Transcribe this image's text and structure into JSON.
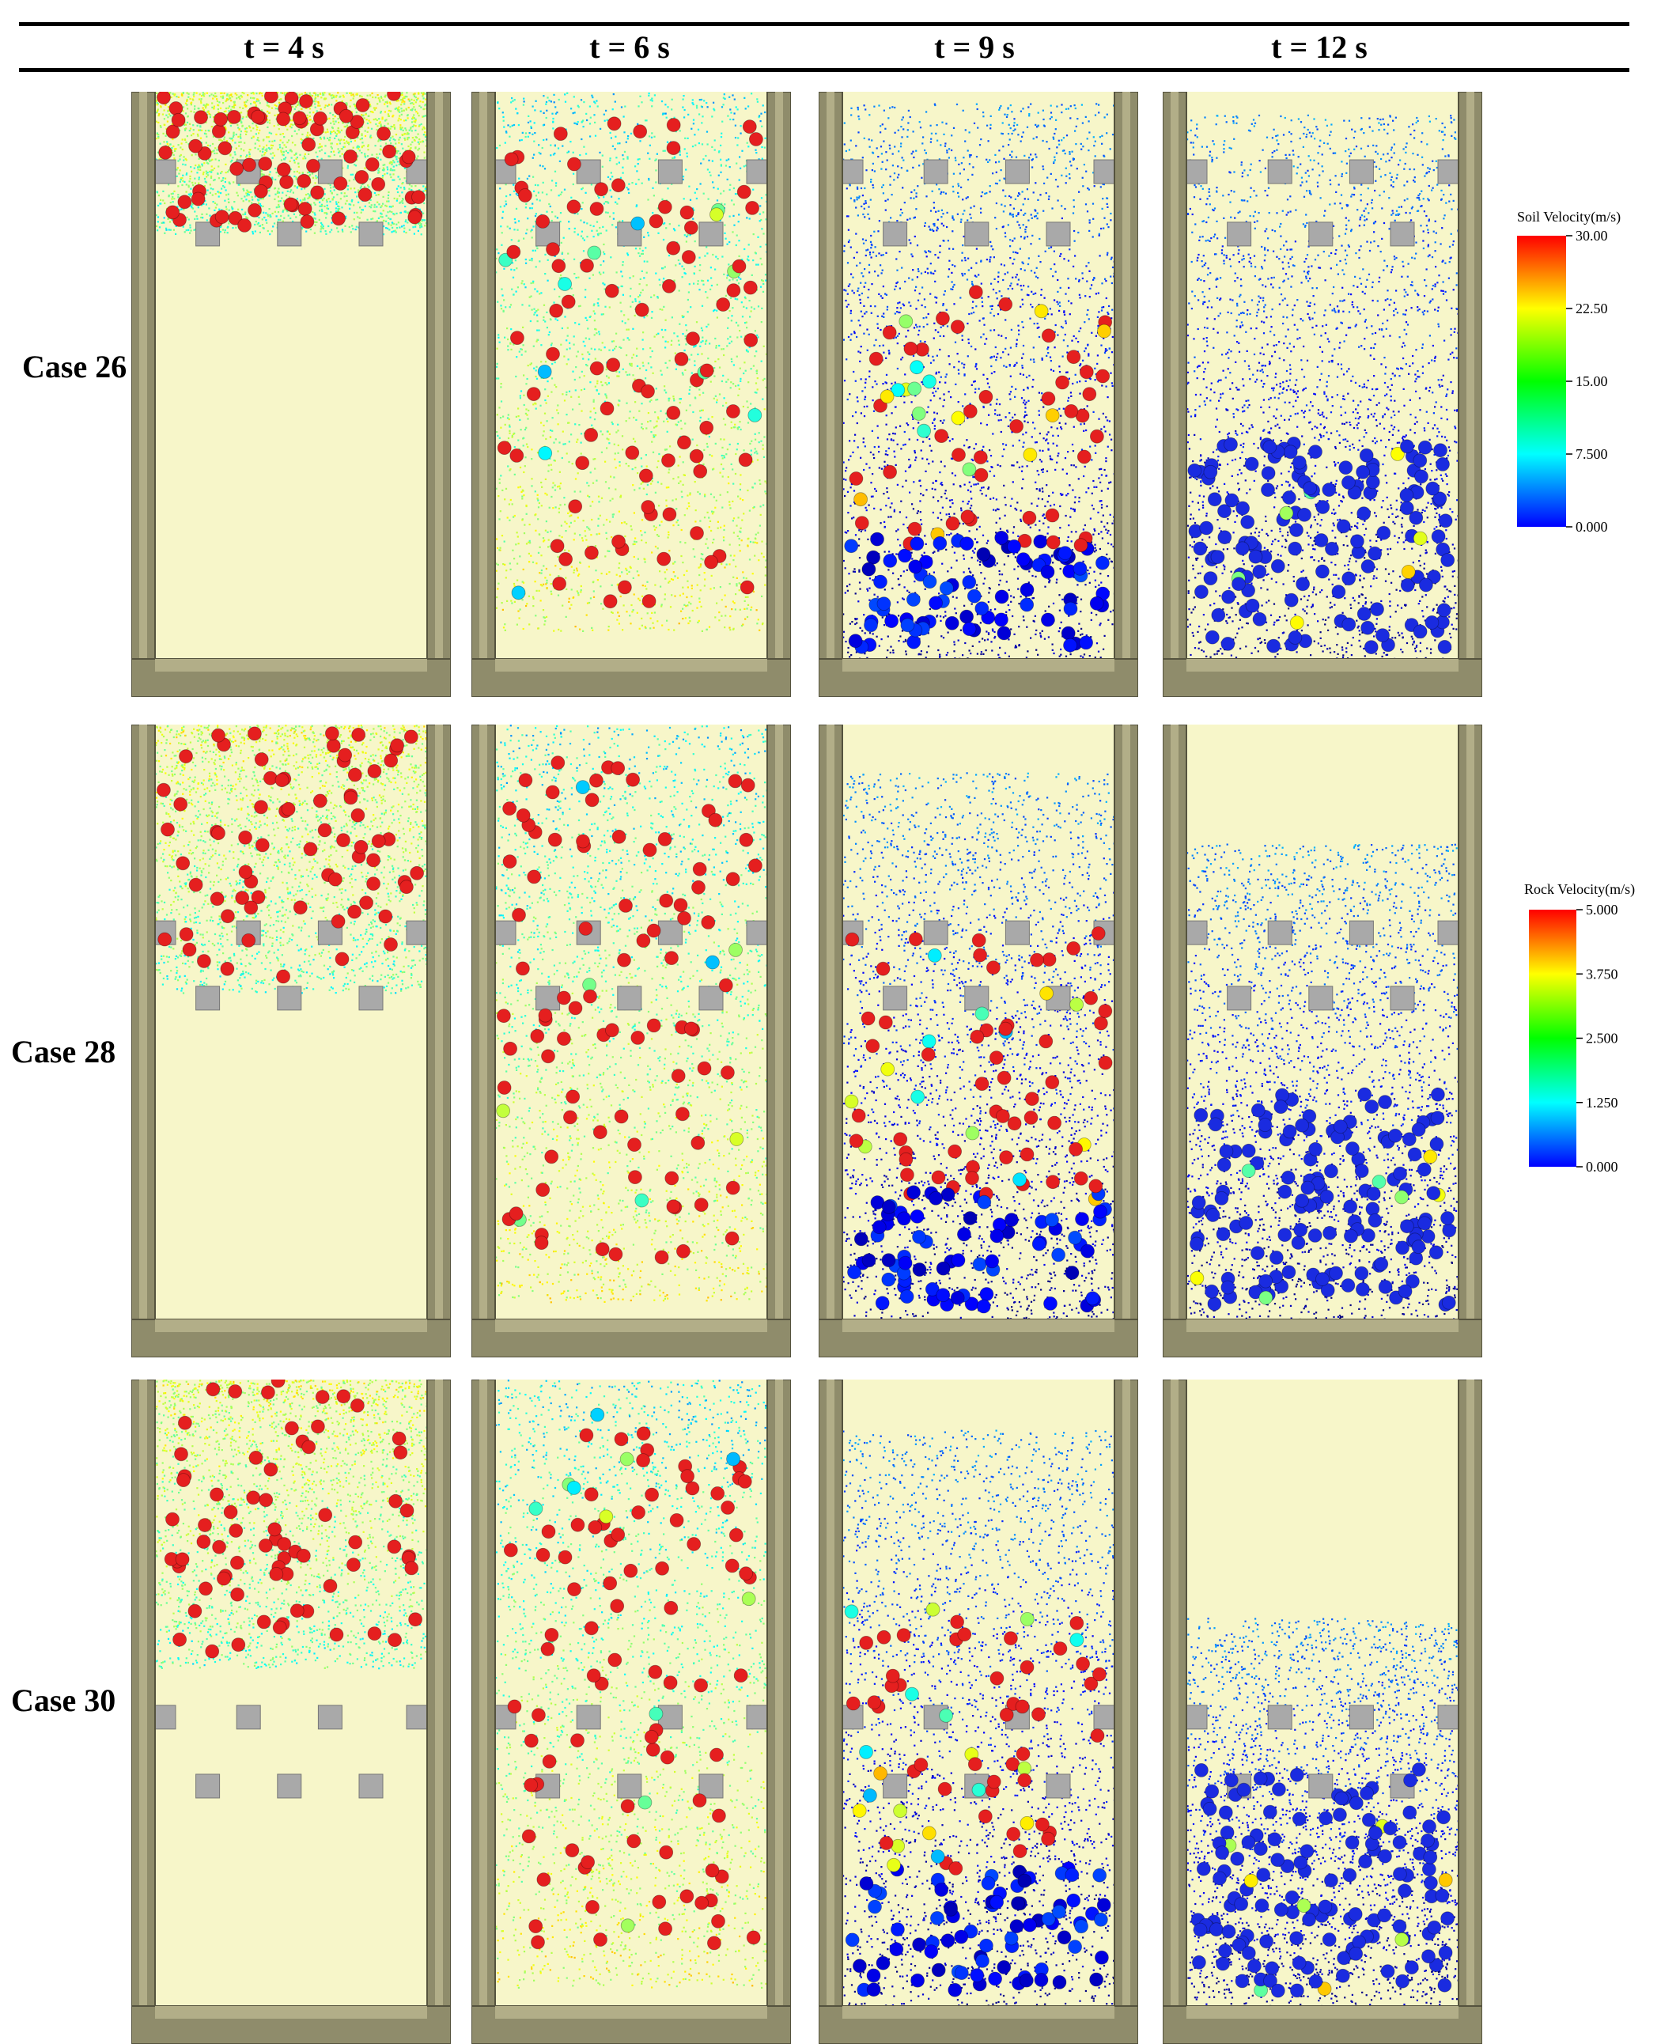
{
  "column_headers": [
    "t = 4 s",
    "t = 6 s",
    "t = 9 s",
    "t = 12 s"
  ],
  "row_labels": [
    "Case 26",
    "Case 28",
    "Case 30"
  ],
  "soil_colorbar": {
    "title": "Soil Velocity(m/s)",
    "ticks": [
      "30.00",
      "22.50",
      "15.00",
      "7.500",
      "0.000"
    ],
    "min": 0,
    "max": 30
  },
  "rock_colorbar": {
    "title": "Rock Velocity(m/s)",
    "ticks": [
      "5.000",
      "3.750",
      "2.500",
      "1.250",
      "0.000"
    ],
    "min": 0,
    "max": 5
  },
  "colors": {
    "background_fluid": "#f7f6c9",
    "wall": "#8f8c6b",
    "wall_inner": "#b2ae88",
    "obstacle": "#a9a9a9",
    "rock_red": "#e51f1f",
    "rock_blue": "#1a2be0"
  },
  "panels": [
    [
      {
        "row": 0,
        "col": 0,
        "stage": "early",
        "front": 0.25,
        "obst_upper": 0.12,
        "obst_lower": 0.23,
        "mix": "green"
      },
      {
        "row": 0,
        "col": 1,
        "stage": "falling",
        "front": 0.95,
        "obst_upper": 0.12,
        "obst_lower": 0.23,
        "mix": "cyan"
      },
      {
        "row": 0,
        "col": 2,
        "stage": "settling",
        "front": 1.0,
        "obst_upper": 0.12,
        "obst_lower": 0.23,
        "mix": "blue"
      },
      {
        "row": 0,
        "col": 3,
        "stage": "settled",
        "front": 1.0,
        "obst_upper": 0.12,
        "obst_lower": 0.23,
        "mix": "blue"
      }
    ],
    [
      {
        "row": 1,
        "col": 0,
        "stage": "early",
        "front": 0.45,
        "obst_upper": 0.33,
        "obst_lower": 0.44,
        "mix": "green"
      },
      {
        "row": 1,
        "col": 1,
        "stage": "falling",
        "front": 0.97,
        "obst_upper": 0.33,
        "obst_lower": 0.44,
        "mix": "cyan"
      },
      {
        "row": 1,
        "col": 2,
        "stage": "settling",
        "front": 1.0,
        "obst_upper": 0.33,
        "obst_lower": 0.44,
        "mix": "blue"
      },
      {
        "row": 1,
        "col": 3,
        "stage": "settled",
        "front": 1.0,
        "obst_upper": 0.33,
        "obst_lower": 0.44,
        "mix": "blue"
      }
    ],
    [
      {
        "row": 2,
        "col": 0,
        "stage": "early",
        "front": 0.46,
        "obst_upper": 0.52,
        "obst_lower": 0.63,
        "mix": "green"
      },
      {
        "row": 2,
        "col": 1,
        "stage": "falling",
        "front": 0.97,
        "obst_upper": 0.52,
        "obst_lower": 0.63,
        "mix": "cyan"
      },
      {
        "row": 2,
        "col": 2,
        "stage": "settling",
        "front": 1.0,
        "obst_upper": 0.52,
        "obst_lower": 0.63,
        "mix": "blue"
      },
      {
        "row": 2,
        "col": 3,
        "stage": "settled",
        "front": 1.0,
        "obst_upper": 0.52,
        "obst_lower": 0.63,
        "mix": "blue"
      }
    ]
  ]
}
